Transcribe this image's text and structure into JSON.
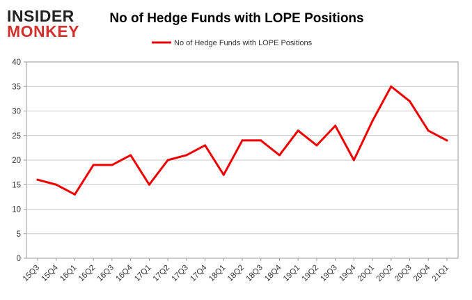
{
  "brand": {
    "line1": "INSIDER",
    "line2": "MONKEY",
    "line1_color": "#222222",
    "line2_color": "#d0312d"
  },
  "chart_data": {
    "type": "line",
    "title": "No of Hedge Funds with LOPE Positions",
    "xlabel": "",
    "ylabel": "",
    "categories": [
      "15Q3",
      "15Q4",
      "16Q1",
      "16Q2",
      "16Q3",
      "16Q4",
      "17Q1",
      "17Q2",
      "17Q3",
      "17Q4",
      "18Q1",
      "18Q2",
      "18Q3",
      "18Q4",
      "19Q1",
      "19Q2",
      "19Q3",
      "19Q4",
      "20Q1",
      "20Q2",
      "20Q3",
      "20Q4",
      "21Q1"
    ],
    "series": [
      {
        "name": "No of Hedge Funds with LOPE Positions",
        "color": "#ee0000",
        "values": [
          16,
          15,
          13,
          19,
          19,
          21,
          15,
          20,
          21,
          23,
          17,
          24,
          24,
          21,
          26,
          23,
          27,
          20,
          28,
          35,
          32,
          26,
          24
        ]
      }
    ],
    "ylim": [
      0,
      40
    ],
    "yticks": [
      0,
      5,
      10,
      15,
      20,
      25,
      30,
      35,
      40
    ],
    "grid": "horizontal",
    "legend_position": "top-center"
  }
}
